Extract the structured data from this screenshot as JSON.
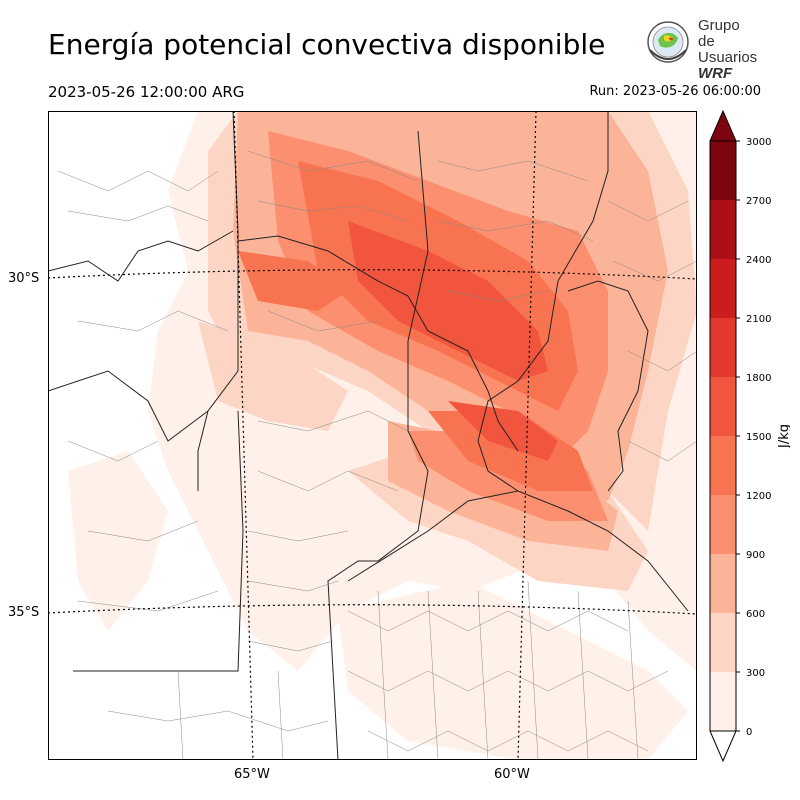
{
  "header": {
    "title": "Energía potencial convectiva disponible",
    "valid_time": "2023-05-26 12:00:00 ARG",
    "run_time": "Run: 2023-05-26 06:00:00"
  },
  "logo": {
    "line1": "Grupo de",
    "line2": "Usuarios",
    "line3": "WRF"
  },
  "map": {
    "variable": "CAPE",
    "lat_labels": [
      "30°S",
      "35°S"
    ],
    "lon_labels": [
      "65°W",
      "60°W"
    ]
  },
  "colorbar": {
    "unit": "J/kg",
    "ticks": [
      "0",
      "300",
      "600",
      "900",
      "1200",
      "1500",
      "1800",
      "2100",
      "2400",
      "2700",
      "3000"
    ],
    "colors": [
      "#fff0ea",
      "#fdd5c4",
      "#fcb499",
      "#fb8f6f",
      "#f87450",
      "#f2553d",
      "#e3382d",
      "#cb1c1e",
      "#ab1016",
      "#7d0510"
    ],
    "extend": "both"
  }
}
